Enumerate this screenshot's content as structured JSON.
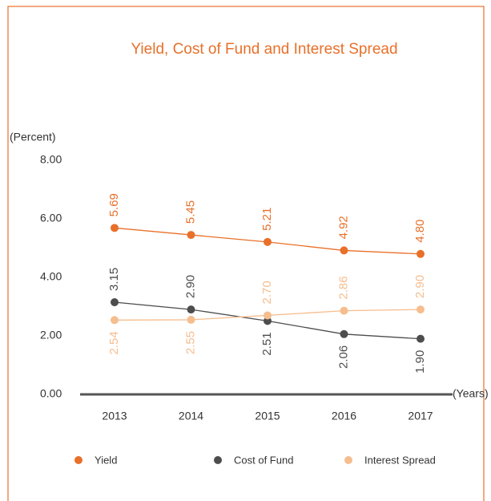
{
  "chart_data": {
    "type": "line",
    "title": "Yield, Cost of Fund and Interest Spread",
    "y_label": "(Percent)",
    "x_label": "(Years)",
    "categories": [
      "2013",
      "2014",
      "2015",
      "2016",
      "2017"
    ],
    "series": [
      {
        "name": "Yield",
        "color": "#e8702a",
        "values": [
          5.69,
          5.45,
          5.21,
          4.92,
          4.8
        ],
        "value_labels": [
          "5.69",
          "5.45",
          "5.21",
          "4.92",
          "4.80"
        ]
      },
      {
        "name": "Cost of Fund",
        "color": "#4d4d4d",
        "values": [
          3.15,
          2.9,
          2.51,
          2.06,
          1.9
        ],
        "value_labels": [
          "3.15",
          "2.90",
          "2.51",
          "2.06",
          "1.90"
        ]
      },
      {
        "name": "Interest Spread",
        "color": "#f6bd8e",
        "values": [
          2.54,
          2.55,
          2.7,
          2.86,
          2.9
        ],
        "value_labels": [
          "2.54",
          "2.55",
          "2.70",
          "2.86",
          "2.90"
        ]
      }
    ],
    "ylim": [
      0,
      8
    ],
    "yticks": [
      {
        "value": 0,
        "label": "0.00"
      },
      {
        "value": 2,
        "label": "2.00"
      },
      {
        "value": 4,
        "label": "4.00"
      },
      {
        "value": 6,
        "label": "6.00"
      },
      {
        "value": 8,
        "label": "8.00"
      }
    ],
    "grid": false,
    "legend": "bottom"
  }
}
